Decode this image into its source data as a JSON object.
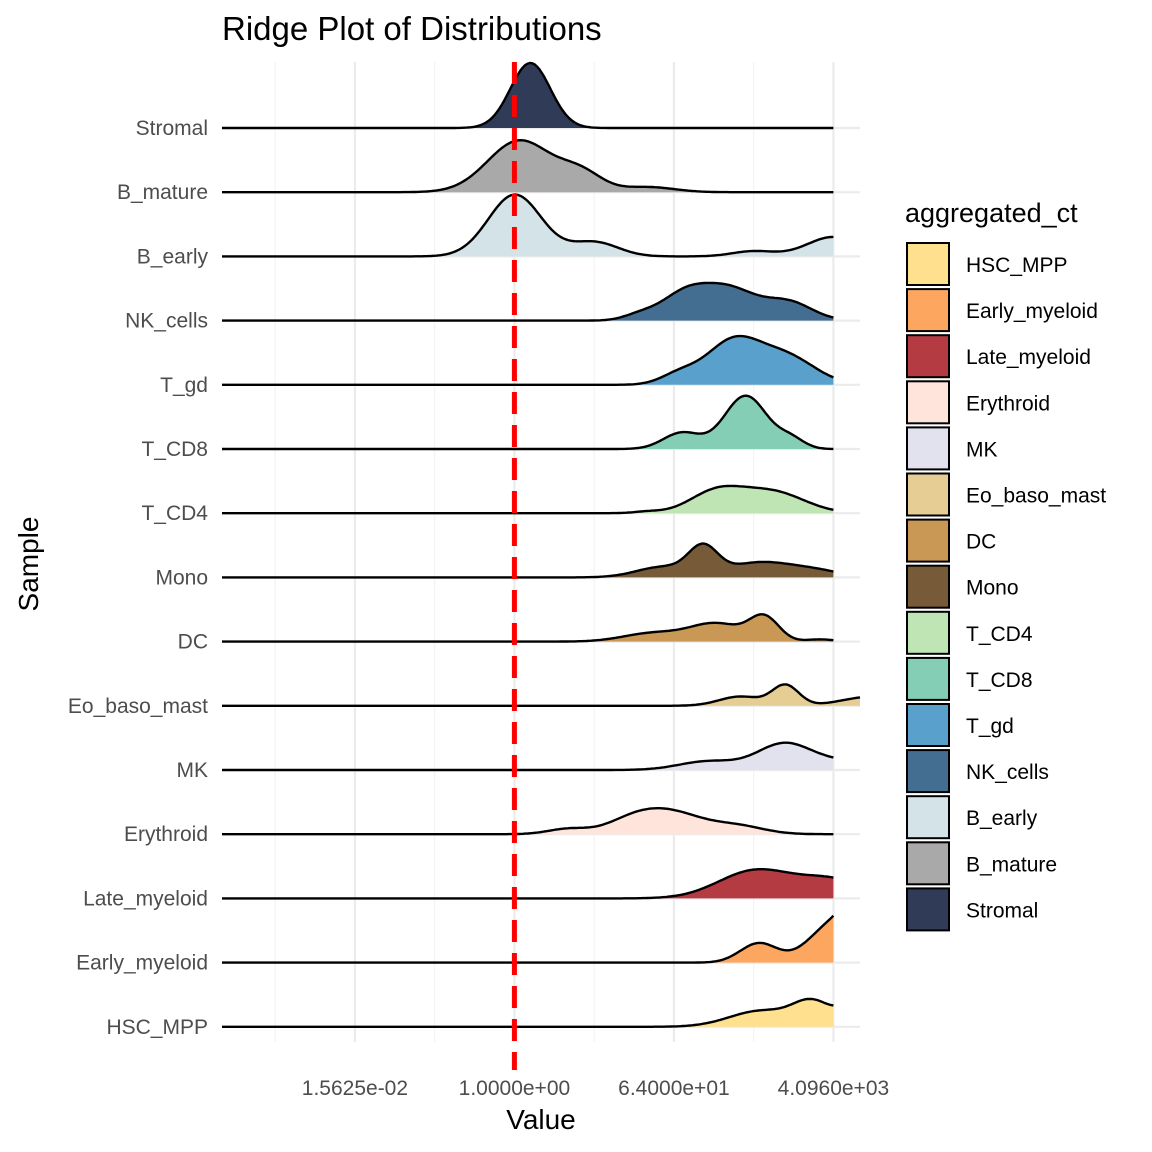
{
  "chart_data": {
    "type": "ridgeline",
    "title": "Ridge Plot of Distributions",
    "xlabel": "Value",
    "ylabel": "Sample",
    "x_scale": "log2",
    "x_ticks": [
      0.015625,
      1,
      64,
      4096
    ],
    "x_tick_labels": [
      "1.5625e-02",
      "1.0000e+00",
      "6.4000e+01",
      "4.0960e+03"
    ],
    "xlim": [
      0.00048828125,
      8192
    ],
    "reference_line": {
      "x": 1,
      "color": "#ff0000",
      "style": "dashed"
    },
    "categories": [
      "Stromal",
      "B_mature",
      "B_early",
      "NK_cells",
      "T_gd",
      "T_CD8",
      "T_CD4",
      "Mono",
      "DC",
      "Eo_baso_mast",
      "MK",
      "Erythroid",
      "Late_myeloid",
      "Early_myeloid",
      "HSC_MPP"
    ],
    "grid": true,
    "legend": {
      "title": "aggregated_ct",
      "position": "right",
      "entries": [
        {
          "name": "HSC_MPP",
          "color": "#FFE08E"
        },
        {
          "name": "Early_myeloid",
          "color": "#FCA660"
        },
        {
          "name": "Late_myeloid",
          "color": "#B43B42"
        },
        {
          "name": "Erythroid",
          "color": "#FEE4DA"
        },
        {
          "name": "MK",
          "color": "#E2E2EE"
        },
        {
          "name": "Eo_baso_mast",
          "color": "#E5CD94"
        },
        {
          "name": "DC",
          "color": "#C89854"
        },
        {
          "name": "Mono",
          "color": "#775A37"
        },
        {
          "name": "T_CD4",
          "color": "#BFE5B5"
        },
        {
          "name": "T_CD8",
          "color": "#84CEB5"
        },
        {
          "name": "T_gd",
          "color": "#5AA0CC"
        },
        {
          "name": "NK_cells",
          "color": "#436E92"
        },
        {
          "name": "B_early",
          "color": "#D4E3E7"
        },
        {
          "name": "B_mature",
          "color": "#A9A9A9"
        },
        {
          "name": "Stromal",
          "color": "#303C57"
        }
      ]
    },
    "series": [
      {
        "name": "Stromal",
        "color": "#303C57",
        "xmin": 0.000488,
        "xmax": 4096,
        "components": [
          {
            "mu": 0.6,
            "sd": 0.75,
            "w": 1.0
          }
        ],
        "values": [
          [
            0.0625,
            0.02
          ],
          [
            0.125,
            0.12
          ],
          [
            0.25,
            0.38
          ],
          [
            0.5,
            0.95
          ],
          [
            0.75,
            1.0
          ],
          [
            1,
            0.8
          ],
          [
            2,
            0.3
          ],
          [
            4,
            0.06
          ],
          [
            8,
            0.01
          ]
        ]
      },
      {
        "name": "B_mature",
        "color": "#A9A9A9",
        "xmin": 0.000488,
        "xmax": 4096,
        "components": [
          {
            "mu": 0.2,
            "sd": 1.2,
            "w": 0.8
          },
          {
            "mu": 2.5,
            "sd": 0.8,
            "w": 0.28
          },
          {
            "mu": 5.0,
            "sd": 1.0,
            "w": 0.08
          }
        ],
        "values": [
          [
            0.0156,
            0.1
          ],
          [
            0.0625,
            0.38
          ],
          [
            0.125,
            0.5
          ],
          [
            0.25,
            0.53
          ],
          [
            0.5,
            0.45
          ],
          [
            1,
            0.3
          ],
          [
            4,
            0.2
          ],
          [
            16,
            0.06
          ],
          [
            64,
            0.01
          ]
        ]
      },
      {
        "name": "B_early",
        "color": "#D4E3E7",
        "xmin": 0.000488,
        "xmax": 4096,
        "components": [
          {
            "mu": 0.02,
            "sd": 1.0,
            "w": 0.95
          },
          {
            "mu": 3.0,
            "sd": 0.9,
            "w": 0.22
          },
          {
            "mu": 9.0,
            "sd": 0.8,
            "w": 0.08
          },
          {
            "mu": 12.0,
            "sd": 1.0,
            "w": 0.3
          }
        ],
        "values": [
          [
            0.002,
            0.1
          ],
          [
            0.004,
            0.25
          ],
          [
            0.0156,
            0.4
          ],
          [
            0.0625,
            0.55
          ],
          [
            0.25,
            0.3
          ],
          [
            1,
            0.08
          ],
          [
            4,
            0.01
          ]
        ]
      },
      {
        "name": "NK_cells",
        "color": "#436E92",
        "xmin": 0.000488,
        "xmax": 4096,
        "components": [
          {
            "mu": 6.4,
            "sd": 0.9,
            "w": 0.5
          },
          {
            "mu": 8.1,
            "sd": 1.0,
            "w": 0.58
          },
          {
            "mu": 10.3,
            "sd": 0.9,
            "w": 0.35
          },
          {
            "mu": 4.7,
            "sd": 0.6,
            "w": 0.1
          }
        ],
        "values": [
          [
            0.0156,
            0.1
          ],
          [
            0.0625,
            0.38
          ],
          [
            0.125,
            0.38
          ],
          [
            0.5,
            0.4
          ],
          [
            1,
            0.3
          ],
          [
            4,
            0.03
          ]
        ]
      },
      {
        "name": "T_gd",
        "color": "#5AA0CC",
        "xmin": 0.000488,
        "xmax": 4096,
        "components": [
          {
            "mu": 8.2,
            "sd": 1.0,
            "w": 0.75
          },
          {
            "mu": 10.2,
            "sd": 1.1,
            "w": 0.5
          },
          {
            "mu": 6.2,
            "sd": 0.7,
            "w": 0.18
          }
        ],
        "values": [
          [
            0.0156,
            0.05
          ],
          [
            0.0625,
            0.3
          ],
          [
            0.25,
            0.45
          ],
          [
            0.5,
            0.5
          ],
          [
            1,
            0.4
          ],
          [
            4,
            0.12
          ],
          [
            16,
            0.01
          ]
        ]
      },
      {
        "name": "T_CD8",
        "color": "#84CEB5",
        "xmin": 0.000488,
        "xmax": 4096,
        "components": [
          {
            "mu": 6.3,
            "sd": 0.7,
            "w": 0.25
          },
          {
            "mu": 8.7,
            "sd": 0.8,
            "w": 0.82
          },
          {
            "mu": 10.4,
            "sd": 0.5,
            "w": 0.15
          }
        ],
        "values": [
          [
            0.0156,
            0.05
          ],
          [
            0.0625,
            0.22
          ],
          [
            0.125,
            0.25
          ],
          [
            0.5,
            0.55
          ],
          [
            1,
            0.4
          ],
          [
            4,
            0.05
          ]
        ]
      },
      {
        "name": "T_CD4",
        "color": "#BFE5B5",
        "xmin": 0.000488,
        "xmax": 4096,
        "components": [
          {
            "mu": 7.6,
            "sd": 1.0,
            "w": 0.42
          },
          {
            "mu": 9.7,
            "sd": 1.2,
            "w": 0.42
          },
          {
            "mu": 5.0,
            "sd": 0.5,
            "w": 0.03
          }
        ],
        "values": [
          [
            0.0156,
            0.03
          ],
          [
            0.0625,
            0.08
          ],
          [
            0.25,
            0.4
          ],
          [
            1,
            0.4
          ],
          [
            4,
            0.2
          ],
          [
            8,
            0.02
          ]
        ]
      },
      {
        "name": "Mono",
        "color": "#775A37",
        "xmin": 0.000488,
        "xmax": 4096,
        "components": [
          {
            "mu": 7.1,
            "sd": 0.55,
            "w": 0.52
          },
          {
            "mu": 5.6,
            "sd": 1.0,
            "w": 0.2
          },
          {
            "mu": 9.2,
            "sd": 1.2,
            "w": 0.28
          },
          {
            "mu": 11.3,
            "sd": 1.0,
            "w": 0.12
          }
        ],
        "values": [
          [
            0.0039,
            0.05
          ],
          [
            0.0156,
            0.2
          ],
          [
            0.125,
            0.55
          ],
          [
            0.5,
            0.25
          ],
          [
            1,
            0.2
          ],
          [
            16,
            0.06
          ]
        ]
      },
      {
        "name": "DC",
        "color": "#C89854",
        "xmin": 0.000488,
        "xmax": 4096,
        "components": [
          {
            "mu": 5.2,
            "sd": 1.1,
            "w": 0.15
          },
          {
            "mu": 7.6,
            "sd": 1.0,
            "w": 0.32
          },
          {
            "mu": 9.4,
            "sd": 0.55,
            "w": 0.42
          },
          {
            "mu": 11.5,
            "sd": 0.5,
            "w": 0.04
          }
        ],
        "values": [
          [
            0.002,
            0.03
          ],
          [
            0.0156,
            0.15
          ],
          [
            0.125,
            0.3
          ],
          [
            0.5,
            0.4
          ],
          [
            1,
            0.3
          ],
          [
            4,
            0.05
          ],
          [
            16,
            0.04
          ]
        ]
      },
      {
        "name": "Eo_baso_mast",
        "color": "#E5CD94",
        "xmin": 0.000488,
        "xmax": 8192,
        "components": [
          {
            "mu": 8.5,
            "sd": 0.8,
            "w": 0.15
          },
          {
            "mu": 10.2,
            "sd": 0.5,
            "w": 0.33
          },
          {
            "mu": 13.4,
            "sd": 1.1,
            "w": 0.14
          },
          {
            "mu": 16.1,
            "sd": 1.2,
            "w": 0.16
          },
          {
            "mu": 17.7,
            "sd": 0.6,
            "w": 0.08
          }
        ],
        "values": [
          [
            0.25,
            0.1
          ],
          [
            0.5,
            0.18
          ],
          [
            1,
            0.35
          ],
          [
            4,
            0.2
          ],
          [
            16,
            0.12
          ],
          [
            256,
            0.17
          ],
          [
            1024,
            0.16
          ],
          [
            4096,
            0.04
          ]
        ]
      },
      {
        "name": "MK",
        "color": "#E2E2EE",
        "xmin": 0.000488,
        "xmax": 4096,
        "components": [
          {
            "mu": 7.3,
            "sd": 1.1,
            "w": 0.15
          },
          {
            "mu": 10.1,
            "sd": 1.0,
            "w": 0.42
          },
          {
            "mu": 12.3,
            "sd": 1.4,
            "w": 0.15
          }
        ],
        "values": [
          [
            0.0625,
            0.05
          ],
          [
            0.25,
            0.15
          ],
          [
            1,
            0.35
          ],
          [
            2,
            0.42
          ],
          [
            8,
            0.25
          ],
          [
            32,
            0.1
          ],
          [
            128,
            0.01
          ]
        ]
      },
      {
        "name": "Erythroid",
        "color": "#FEE4DA",
        "xmin": 0.000488,
        "xmax": 4096,
        "components": [
          {
            "mu": 2.0,
            "sd": 0.75,
            "w": 0.1
          },
          {
            "mu": 4.4,
            "sd": 1.0,
            "w": 0.22
          },
          {
            "mu": 5.9,
            "sd": 1.2,
            "w": 0.4
          },
          {
            "mu": 8.4,
            "sd": 1.0,
            "w": 0.15
          }
        ],
        "values": [
          [
            0.0039,
            0.1
          ],
          [
            0.0156,
            0.15
          ],
          [
            0.0625,
            0.4
          ],
          [
            0.125,
            0.45
          ],
          [
            0.5,
            0.2
          ],
          [
            1,
            0.12
          ],
          [
            4,
            0.01
          ]
        ]
      },
      {
        "name": "Late_myeloid",
        "color": "#B43B42",
        "xmin": 0.000488,
        "xmax": 4096,
        "components": [
          {
            "mu": 9.1,
            "sd": 1.4,
            "w": 0.45
          },
          {
            "mu": 12.0,
            "sd": 1.2,
            "w": 0.28
          }
        ],
        "values": [
          [
            0.125,
            0.05
          ],
          [
            0.5,
            0.3
          ],
          [
            1,
            0.42
          ],
          [
            4,
            0.38
          ],
          [
            16,
            0.2
          ],
          [
            64,
            0.02
          ]
        ]
      },
      {
        "name": "Early_myeloid",
        "color": "#FCA660",
        "xmin": 0.000488,
        "xmax": 4096,
        "components": [
          {
            "mu": 9.2,
            "sd": 0.7,
            "w": 0.06
          },
          {
            "mu": 11.6,
            "sd": 0.8,
            "w": 0.07
          },
          {
            "mu": 13.4,
            "sd": 1.0,
            "w": 0.22
          },
          {
            "mu": 15.4,
            "sd": 0.8,
            "w": 0.72
          }
        ],
        "values": [
          [
            0.5,
            0.08
          ],
          [
            1,
            0.06
          ],
          [
            4,
            0.1
          ],
          [
            32,
            0.3
          ],
          [
            128,
            0.55
          ],
          [
            256,
            0.7
          ],
          [
            1024,
            0.1
          ]
        ]
      },
      {
        "name": "HSC_MPP",
        "color": "#FFE08E",
        "xmin": 0.000488,
        "xmax": 4096,
        "components": [
          {
            "mu": 9.3,
            "sd": 1.2,
            "w": 0.18
          },
          {
            "mu": 11.2,
            "sd": 0.7,
            "w": 0.25
          },
          {
            "mu": 13.4,
            "sd": 0.8,
            "w": 0.43
          },
          {
            "mu": 14.8,
            "sd": 0.9,
            "w": 0.2
          }
        ],
        "values": [
          [
            0.25,
            0.1
          ],
          [
            1,
            0.15
          ],
          [
            4,
            0.3
          ],
          [
            16,
            0.22
          ],
          [
            32,
            0.45
          ],
          [
            128,
            0.3
          ],
          [
            512,
            0.05
          ]
        ]
      }
    ]
  }
}
